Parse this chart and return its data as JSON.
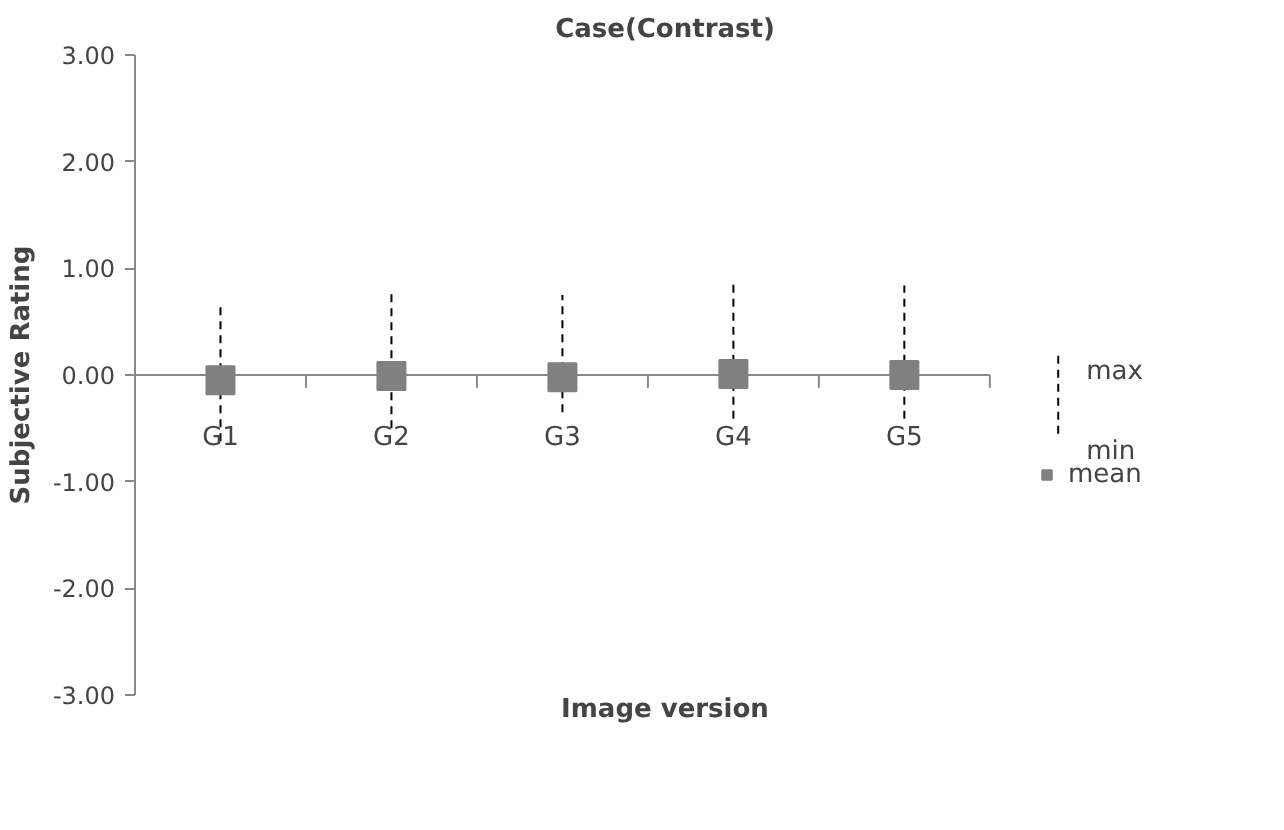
{
  "chart_data": {
    "type": "scatter",
    "title": "Case(Contrast)",
    "xlabel": "Image version",
    "ylabel": "Subjective Rating",
    "categories": [
      "G1",
      "G2",
      "G3",
      "G4",
      "G5"
    ],
    "series": [
      {
        "name": "mean",
        "color": "#808080",
        "values": [
          -0.05,
          -0.01,
          -0.02,
          0.01,
          0.0
        ],
        "errors": [
          [
            -0.62,
            0.69
          ],
          [
            -0.5,
            0.81
          ],
          [
            -0.35,
            0.75
          ],
          [
            -0.41,
            0.87
          ],
          [
            -0.41,
            0.84
          ]
        ]
      }
    ],
    "ylim": [
      -3,
      3
    ],
    "yticks": [
      {
        "value": -3,
        "label": "-3.00"
      },
      {
        "value": -2,
        "label": "-2.00"
      },
      {
        "value": -1,
        "label": "-1.00"
      },
      {
        "value": 0,
        "label": "0.00"
      },
      {
        "value": 1,
        "label": "1.00"
      },
      {
        "value": 2,
        "label": "2.00"
      },
      {
        "value": 3,
        "label": "3.00"
      }
    ],
    "annotations": [
      "max",
      "min"
    ],
    "marker": "square",
    "legend": "right",
    "grid": false
  }
}
